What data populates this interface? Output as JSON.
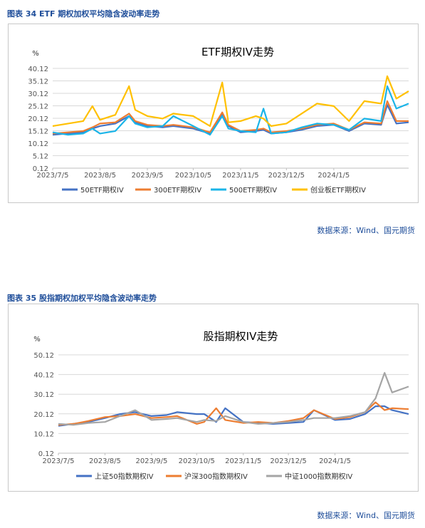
{
  "figures": [
    {
      "caption": "图表 34 ETF 期权加权平均隐含波动率走势",
      "source": "数据来源：Wind、国元期货"
    },
    {
      "caption": "图表 35 股指期权加权平均隐含波动率走势",
      "source": "数据来源：Wind、国元期货"
    }
  ],
  "chart_data": [
    {
      "type": "line",
      "title": "ETF期权IV走势",
      "unit": "%",
      "x_ticks": [
        "2023/7/5",
        "2023/8/5",
        "2023/9/5",
        "2023/10/5",
        "2023/11/5",
        "2023/12/5",
        "2024/1/5"
      ],
      "xlim": [
        "2023-07-05",
        "2024-02-23"
      ],
      "y_ticks": [
        "40.12",
        "35.12",
        "30.12",
        "25.12",
        "20.12",
        "15.12",
        "10.12",
        "5.12",
        "0.12"
      ],
      "ylim": [
        0.12,
        40.12
      ],
      "grid": "horizontal",
      "legend": "bottom",
      "x": [
        "2023-07-05",
        "2023-07-15",
        "2023-07-25",
        "2023-07-31",
        "2023-08-05",
        "2023-08-15",
        "2023-08-24",
        "2023-08-28",
        "2023-09-05",
        "2023-09-15",
        "2023-09-22",
        "2023-10-05",
        "2023-10-16",
        "2023-10-24",
        "2023-10-28",
        "2023-11-05",
        "2023-11-15",
        "2023-11-20",
        "2023-11-25",
        "2023-12-05",
        "2023-12-15",
        "2023-12-25",
        "2024-01-05",
        "2024-01-15",
        "2024-01-25",
        "2024-02-05",
        "2024-02-09",
        "2024-02-15",
        "2024-02-23"
      ],
      "series": [
        {
          "name": "50ETF期权IV",
          "color": "#4472c4",
          "values": [
            13.5,
            14,
            14.5,
            16,
            17,
            18,
            21,
            18.5,
            17,
            16.5,
            17,
            16,
            14,
            22,
            17,
            14.5,
            15,
            15.5,
            14,
            14.5,
            15.5,
            17,
            17.5,
            15,
            18,
            17.5,
            25.5,
            18,
            18.5
          ]
        },
        {
          "name": "300ETF期权IV",
          "color": "#ed7d31",
          "values": [
            14,
            14.5,
            15,
            16.5,
            18,
            18.5,
            22,
            19,
            17.5,
            17,
            17.5,
            16.5,
            14.5,
            22.5,
            17.5,
            15,
            15.5,
            16,
            14.5,
            15,
            16,
            17.5,
            18,
            15.5,
            18.5,
            18,
            27,
            19,
            19
          ]
        },
        {
          "name": "500ETF期权IV",
          "color": "#1ab4e8",
          "values": [
            14.5,
            13.5,
            14,
            16,
            14,
            15,
            21,
            18,
            16.5,
            17,
            21,
            17,
            13.5,
            21,
            16,
            15,
            14.5,
            24,
            14,
            14.5,
            16.5,
            18,
            17.5,
            15.5,
            20,
            19,
            33,
            24,
            26
          ]
        },
        {
          "name": "创业板ETF期权IV",
          "color": "#ffc000",
          "values": [
            17,
            18,
            19,
            25,
            19.5,
            21.5,
            33,
            23.5,
            21,
            20,
            22,
            21,
            17,
            34.5,
            18.5,
            19,
            21,
            20,
            17,
            18,
            22,
            26,
            25,
            19,
            27,
            26,
            37,
            28,
            31
          ]
        }
      ]
    },
    {
      "type": "line",
      "title": "股指期权IV走势",
      "unit": "%",
      "x_ticks": [
        "2023/7/5",
        "2023/8/5",
        "2023/9/5",
        "2023/10/5",
        "2023/11/5",
        "2023/12/5",
        "2024/1/5"
      ],
      "xlim": [
        "2023-07-05",
        "2024-02-23"
      ],
      "y_ticks": [
        "50.12",
        "40.12",
        "30.12",
        "20.12",
        "10.12",
        "0.12"
      ],
      "ylim": [
        0.12,
        50.12
      ],
      "grid": "horizontal",
      "legend": "bottom",
      "x": [
        "2023-07-05",
        "2023-07-15",
        "2023-07-25",
        "2023-08-05",
        "2023-08-15",
        "2023-08-25",
        "2023-09-05",
        "2023-09-15",
        "2023-09-22",
        "2023-10-05",
        "2023-10-10",
        "2023-10-18",
        "2023-10-24",
        "2023-11-05",
        "2023-11-15",
        "2023-11-25",
        "2023-12-05",
        "2023-12-15",
        "2023-12-22",
        "2024-01-05",
        "2024-01-15",
        "2024-01-25",
        "2024-02-01",
        "2024-02-07",
        "2024-02-12",
        "2024-02-23"
      ],
      "series": [
        {
          "name": "上证50指数期权IV",
          "color": "#4472c4",
          "values": [
            14,
            15,
            16,
            18,
            20,
            21,
            19,
            19.5,
            21,
            20,
            20,
            16,
            23,
            16,
            15.5,
            15,
            15.5,
            16,
            22,
            17,
            17.5,
            20,
            24,
            24,
            22,
            20
          ]
        },
        {
          "name": "沪深300指数期权IV",
          "color": "#ed7d31",
          "values": [
            14.5,
            15,
            16.5,
            18.5,
            19,
            20,
            18,
            18.5,
            19,
            15,
            16,
            23,
            17,
            15.5,
            16,
            15.5,
            16.5,
            18,
            22,
            17.5,
            18.5,
            21,
            26,
            22,
            23,
            22.5
          ]
        },
        {
          "name": "中证1000指数期权IV",
          "color": "#a5a5a5",
          "values": [
            15,
            14.5,
            15.5,
            16,
            19,
            22,
            17,
            17.5,
            18,
            16,
            17,
            16.5,
            19,
            16,
            15,
            15.5,
            16,
            17,
            18,
            18,
            19,
            21,
            28,
            41,
            31,
            34
          ]
        }
      ]
    }
  ]
}
